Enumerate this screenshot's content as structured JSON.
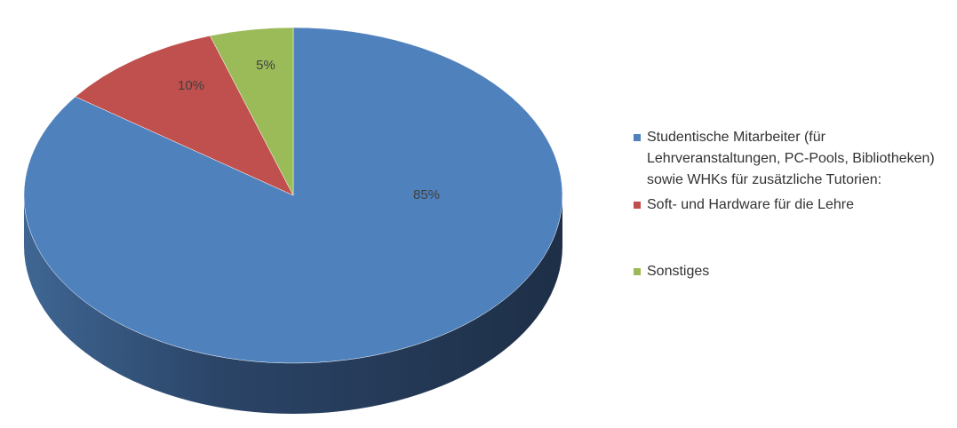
{
  "chart_data": {
    "type": "pie",
    "title": "",
    "three_d": true,
    "legend_position": "right",
    "slices": [
      {
        "label": "Studentische Mitarbeiter (für Lehrveranstaltungen, PC-Pools, Bibliotheken) sowie WHKs für zusätzliche Tutorien:",
        "value": 85,
        "display": "85%",
        "color": "#4F81BD",
        "side_color": "#2C4A6E"
      },
      {
        "label": "Soft- und Hardware für die Lehre",
        "value": 10,
        "display": "10%",
        "color": "#C0504D",
        "side_color": "#7A2F2D"
      },
      {
        "label": "Sonstiges",
        "value": 5,
        "display": "5%",
        "color": "#9BBB59",
        "side_color": "#5F7534"
      }
    ]
  },
  "legend": {
    "items": [
      {
        "label": "Studentische Mitarbeiter (für\nLehrveranstaltungen, PC-Pools, Bibliotheken)\nsowie WHKs für zusätzliche Tutorien:",
        "color": "#4F81BD"
      },
      {
        "label": "Soft- und Hardware für die Lehre",
        "color": "#C0504D"
      },
      {
        "label": "Sonstiges",
        "color": "#9BBB59"
      }
    ]
  }
}
